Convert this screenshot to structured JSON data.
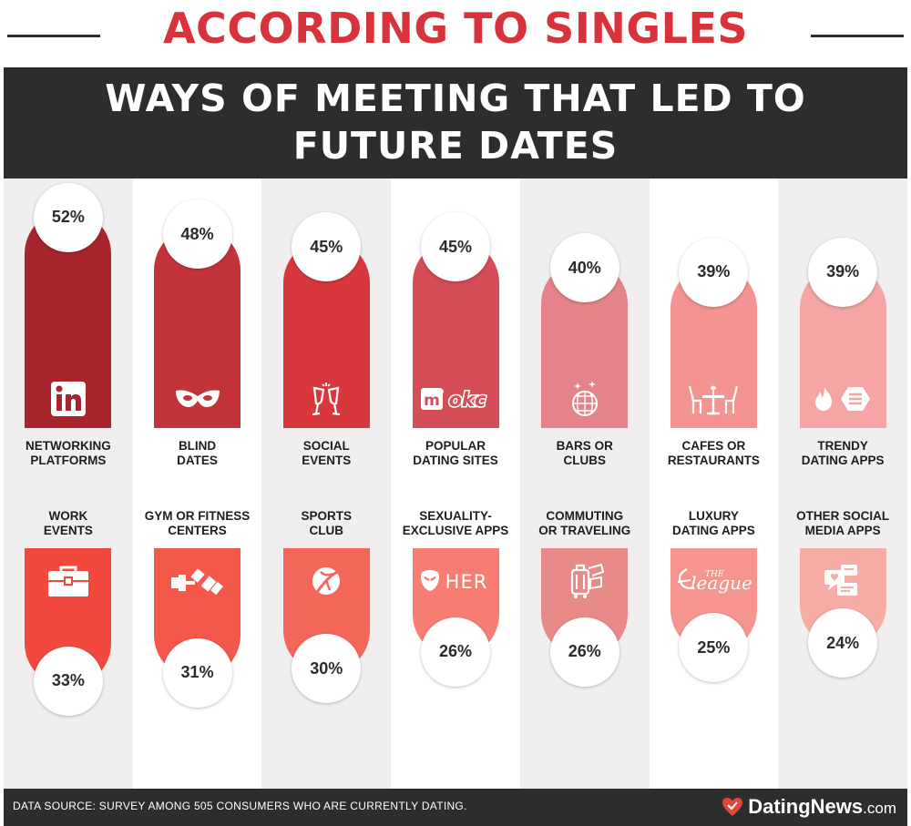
{
  "header": {
    "title": "ACCORDING TO SINGLES",
    "subtitle": "WAYS OF MEETING THAT LED TO FUTURE DATES"
  },
  "colors": {
    "title_red": "#d8323a",
    "banner_dark": "#2d2d2d",
    "col_light": "#f0eeee",
    "col_white": "#ffffff"
  },
  "chart_data": {
    "type": "bar",
    "title": "WAYS OF MEETING THAT LED TO FUTURE DATES",
    "unit": "%",
    "ylim": [
      0,
      60
    ],
    "rows": [
      {
        "orientation": "top",
        "items": [
          {
            "label_lines": [
              "NETWORKING",
              "PLATFORMS"
            ],
            "value": 52,
            "display": "52%",
            "color": "#a8252e",
            "icon": "linkedin-icon"
          },
          {
            "label_lines": [
              "BLIND",
              "DATES"
            ],
            "value": 48,
            "display": "48%",
            "color": "#c4333a",
            "icon": "mask-icon"
          },
          {
            "label_lines": [
              "SOCIAL",
              "EVENTS"
            ],
            "value": 45,
            "display": "45%",
            "color": "#d8373d",
            "icon": "champagne-icon"
          },
          {
            "label_lines": [
              "POPULAR",
              "DATING SITES"
            ],
            "value": 45,
            "display": "45%",
            "color": "#d54d57",
            "icon": "match-okc-icon",
            "icon_text": "okc"
          },
          {
            "label_lines": [
              "BARS OR",
              "CLUBS"
            ],
            "value": 40,
            "display": "40%",
            "color": "#e48389",
            "icon": "disco-ball-icon"
          },
          {
            "label_lines": [
              "CAFES OR",
              "RESTAURANTS"
            ],
            "value": 39,
            "display": "39%",
            "color": "#f39392",
            "icon": "restaurant-icon"
          },
          {
            "label_lines": [
              "TRENDY",
              "DATING APPS"
            ],
            "value": 39,
            "display": "39%",
            "color": "#f5a5a3",
            "icon": "tinder-bumble-icon"
          }
        ]
      },
      {
        "orientation": "bottom",
        "items": [
          {
            "label_lines": [
              "WORK",
              "EVENTS"
            ],
            "value": 33,
            "display": "33%",
            "color": "#f2483d",
            "icon": "briefcase-icon"
          },
          {
            "label_lines": [
              "GYM OR FITNESS",
              "CENTERS"
            ],
            "value": 31,
            "display": "31%",
            "color": "#f4584b",
            "icon": "dumbbell-icon"
          },
          {
            "label_lines": [
              "SPORTS",
              "CLUB"
            ],
            "value": 30,
            "display": "30%",
            "color": "#f5665a",
            "icon": "sports-ball-icon"
          },
          {
            "label_lines": [
              "SEXUALITY-",
              "EXCLUSIVE APPS"
            ],
            "value": 26,
            "display": "26%",
            "color": "#f77c72",
            "icon": "grindr-her-icon",
            "icon_text": "HER"
          },
          {
            "label_lines": [
              "COMMUTING",
              "OR TRAVELING"
            ],
            "value": 26,
            "display": "26%",
            "color": "#e88a88",
            "icon": "luggage-icon"
          },
          {
            "label_lines": [
              "LUXURY",
              "DATING APPS"
            ],
            "value": 25,
            "display": "25%",
            "color": "#f5958e",
            "icon": "the-league-icon",
            "icon_text": "THE league"
          },
          {
            "label_lines": [
              "OTHER SOCIAL",
              "MEDIA APPS"
            ],
            "value": 24,
            "display": "24%",
            "color": "#f8aca6",
            "icon": "social-media-icon"
          }
        ]
      }
    ]
  },
  "footer": {
    "source": "DATA SOURCE: SURVEY AMONG 505 CONSUMERS WHO ARE CURRENTLY DATING.",
    "brand_main": "DatingNews",
    "brand_suffix": ".com",
    "brand_icon": "heart-logo-icon"
  }
}
